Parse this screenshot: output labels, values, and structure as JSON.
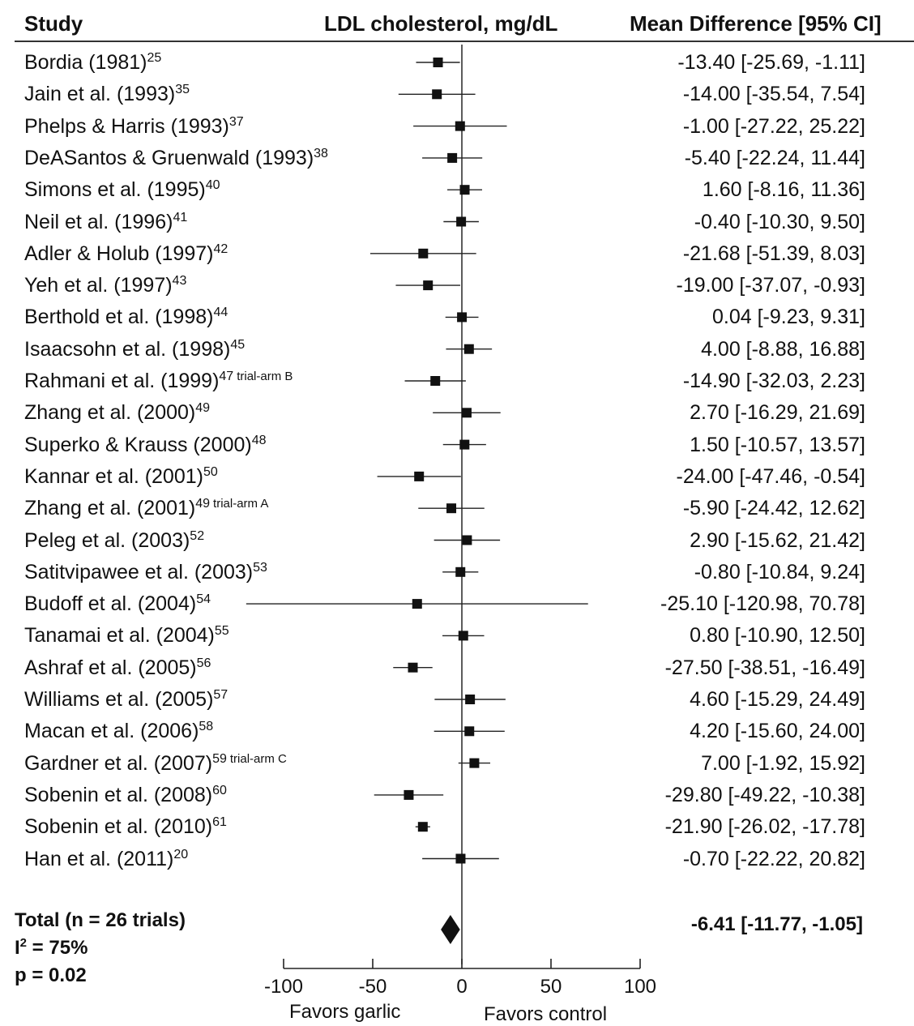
{
  "headers": {
    "study": "Study",
    "measure": "LDL cholesterol, mg/dL",
    "effect": "Mean Difference [95% CI]"
  },
  "chart_data": {
    "type": "forest",
    "xlim": [
      -100,
      100
    ],
    "xticks": [
      -100,
      -50,
      0,
      50,
      100
    ],
    "xtick_labels": [
      "-100",
      "-50",
      "0",
      "50",
      "100"
    ],
    "favors_left": "Favors garlic",
    "favors_right": "Favors control",
    "studies": [
      {
        "name": "Bordia (1981)",
        "ref": "25",
        "arm": "",
        "md": -13.4,
        "lo": -25.69,
        "hi": -1.11,
        "ci_text": "-13.40 [-25.69, -1.11]"
      },
      {
        "name": "Jain et al. (1993)",
        "ref": "35",
        "arm": "",
        "md": -14.0,
        "lo": -35.54,
        "hi": 7.54,
        "ci_text": "-14.00 [-35.54, 7.54]"
      },
      {
        "name": "Phelps & Harris (1993)",
        "ref": "37",
        "arm": "",
        "md": -1.0,
        "lo": -27.22,
        "hi": 25.22,
        "ci_text": "-1.00 [-27.22, 25.22]"
      },
      {
        "name": "DeASantos & Gruenwald (1993)",
        "ref": "38",
        "arm": "",
        "md": -5.4,
        "lo": -22.24,
        "hi": 11.44,
        "ci_text": "-5.40 [-22.24, 11.44]"
      },
      {
        "name": "Simons et al. (1995)",
        "ref": "40",
        "arm": "",
        "md": 1.6,
        "lo": -8.16,
        "hi": 11.36,
        "ci_text": "1.60 [-8.16, 11.36]"
      },
      {
        "name": "Neil et al. (1996)",
        "ref": "41",
        "arm": "",
        "md": -0.4,
        "lo": -10.3,
        "hi": 9.5,
        "ci_text": "-0.40 [-10.30, 9.50]"
      },
      {
        "name": "Adler & Holub (1997)",
        "ref": "42",
        "arm": "",
        "md": -21.68,
        "lo": -51.39,
        "hi": 8.03,
        "ci_text": "-21.68 [-51.39, 8.03]"
      },
      {
        "name": "Yeh et al. (1997)",
        "ref": "43",
        "arm": "",
        "md": -19.0,
        "lo": -37.07,
        "hi": -0.93,
        "ci_text": "-19.00 [-37.07, -0.93]"
      },
      {
        "name": "Berthold et al. (1998)",
        "ref": "44",
        "arm": "",
        "md": 0.04,
        "lo": -9.23,
        "hi": 9.31,
        "ci_text": "0.04 [-9.23, 9.31]"
      },
      {
        "name": "Isaacsohn et al. (1998)",
        "ref": "45",
        "arm": "",
        "md": 4.0,
        "lo": -8.88,
        "hi": 16.88,
        "ci_text": "4.00 [-8.88, 16.88]"
      },
      {
        "name": "Rahmani et al. (1999)",
        "ref": "47",
        "arm": "trial-arm B",
        "md": -14.9,
        "lo": -32.03,
        "hi": 2.23,
        "ci_text": "-14.90 [-32.03, 2.23]"
      },
      {
        "name": "Zhang et al. (2000)",
        "ref": "49",
        "arm": "",
        "md": 2.7,
        "lo": -16.29,
        "hi": 21.69,
        "ci_text": "2.70 [-16.29, 21.69]"
      },
      {
        "name": "Superko & Krauss (2000)",
        "ref": "48",
        "arm": "",
        "md": 1.5,
        "lo": -10.57,
        "hi": 13.57,
        "ci_text": "1.50 [-10.57, 13.57]"
      },
      {
        "name": "Kannar et al. (2001)",
        "ref": "50",
        "arm": "",
        "md": -24.0,
        "lo": -47.46,
        "hi": -0.54,
        "ci_text": "-24.00 [-47.46, -0.54]"
      },
      {
        "name": "Zhang et al. (2001)",
        "ref": "49",
        "arm": "trial-arm A",
        "md": -5.9,
        "lo": -24.42,
        "hi": 12.62,
        "ci_text": "-5.90 [-24.42, 12.62]"
      },
      {
        "name": "Peleg et al. (2003)",
        "ref": "52",
        "arm": "",
        "md": 2.9,
        "lo": -15.62,
        "hi": 21.42,
        "ci_text": "2.90 [-15.62, 21.42]"
      },
      {
        "name": "Satitvipawee et al. (2003)",
        "ref": "53",
        "arm": "",
        "md": -0.8,
        "lo": -10.84,
        "hi": 9.24,
        "ci_text": "-0.80 [-10.84, 9.24]"
      },
      {
        "name": "Budoff et al. (2004)",
        "ref": "54",
        "arm": "",
        "md": -25.1,
        "lo": -120.98,
        "hi": 70.78,
        "ci_text": "-25.10 [-120.98, 70.78]"
      },
      {
        "name": "Tanamai et al. (2004)",
        "ref": "55",
        "arm": "",
        "md": 0.8,
        "lo": -10.9,
        "hi": 12.5,
        "ci_text": "0.80 [-10.90, 12.50]"
      },
      {
        "name": "Ashraf et al. (2005)",
        "ref": "56",
        "arm": "",
        "md": -27.5,
        "lo": -38.51,
        "hi": -16.49,
        "ci_text": "-27.50 [-38.51, -16.49]"
      },
      {
        "name": "Williams et al. (2005)",
        "ref": "57",
        "arm": "",
        "md": 4.6,
        "lo": -15.29,
        "hi": 24.49,
        "ci_text": "4.60 [-15.29, 24.49]"
      },
      {
        "name": "Macan et al. (2006)",
        "ref": "58",
        "arm": "",
        "md": 4.2,
        "lo": -15.6,
        "hi": 24.0,
        "ci_text": "4.20 [-15.60, 24.00]"
      },
      {
        "name": "Gardner et al. (2007)",
        "ref": "59",
        "arm": "trial-arm C",
        "md": 7.0,
        "lo": -1.92,
        "hi": 15.92,
        "ci_text": "7.00 [-1.92, 15.92]"
      },
      {
        "name": "Sobenin et al. (2008)",
        "ref": "60",
        "arm": "",
        "md": -29.8,
        "lo": -49.22,
        "hi": -10.38,
        "ci_text": "-29.80 [-49.22, -10.38]"
      },
      {
        "name": "Sobenin et al. (2010)",
        "ref": "61",
        "arm": "",
        "md": -21.9,
        "lo": -26.02,
        "hi": -17.78,
        "ci_text": "-21.90 [-26.02, -17.78]"
      },
      {
        "name": "Han et al. (2011)",
        "ref": "20",
        "arm": "",
        "md": -0.7,
        "lo": -22.22,
        "hi": 20.82,
        "ci_text": "-0.70 [-22.22, 20.82]"
      }
    ],
    "total": {
      "label": "Total (n = 26 trials)",
      "i2_prefix": "I",
      "i2_sup": "2",
      "i2_value": " = 75%",
      "p": "p = 0.02",
      "md": -6.41,
      "lo": -11.77,
      "hi": -1.05,
      "ci_text": "-6.41 [-11.77, -1.05]"
    }
  }
}
